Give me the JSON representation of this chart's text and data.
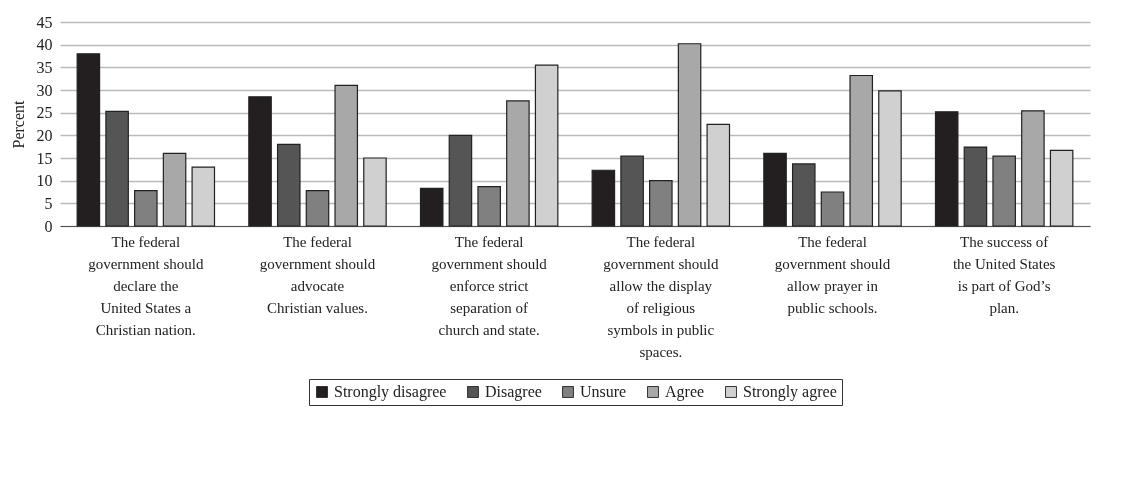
{
  "chart_data": {
    "type": "bar",
    "ylabel": "Percent",
    "categories": [
      "The federal government should declare the United States a Christian nation.",
      "The federal government should advocate Christian values.",
      "The federal government should enforce strict separation of church and state.",
      "The federal government should allow the display of religious symbols in public spaces.",
      "The federal government should allow prayer in public schools.",
      "The success of the United States is part of God’s plan."
    ],
    "series": [
      {
        "name": "Strongly disagree",
        "color": "#231f20",
        "values": [
          38,
          28.5,
          8.3,
          12.3,
          16,
          25.2
        ]
      },
      {
        "name": "Disagree",
        "color": "#555555",
        "values": [
          25.3,
          18,
          20,
          15.4,
          13.7,
          17.4
        ]
      },
      {
        "name": "Unsure",
        "color": "#808080",
        "values": [
          7.8,
          7.8,
          8.7,
          10,
          7.5,
          15.4
        ]
      },
      {
        "name": "Agree",
        "color": "#a8a8a8",
        "values": [
          16,
          31,
          27.6,
          40.2,
          33.2,
          25.4
        ]
      },
      {
        "name": "Strongly agree",
        "color": "#d0d0d0",
        "values": [
          13,
          15,
          35.5,
          22.4,
          29.8,
          16.7
        ]
      }
    ],
    "ylim": [
      0,
      45
    ],
    "yticks": [
      0,
      5,
      10,
      15,
      20,
      25,
      30,
      35,
      40,
      45
    ],
    "grid": "y",
    "legend": "bottom"
  }
}
